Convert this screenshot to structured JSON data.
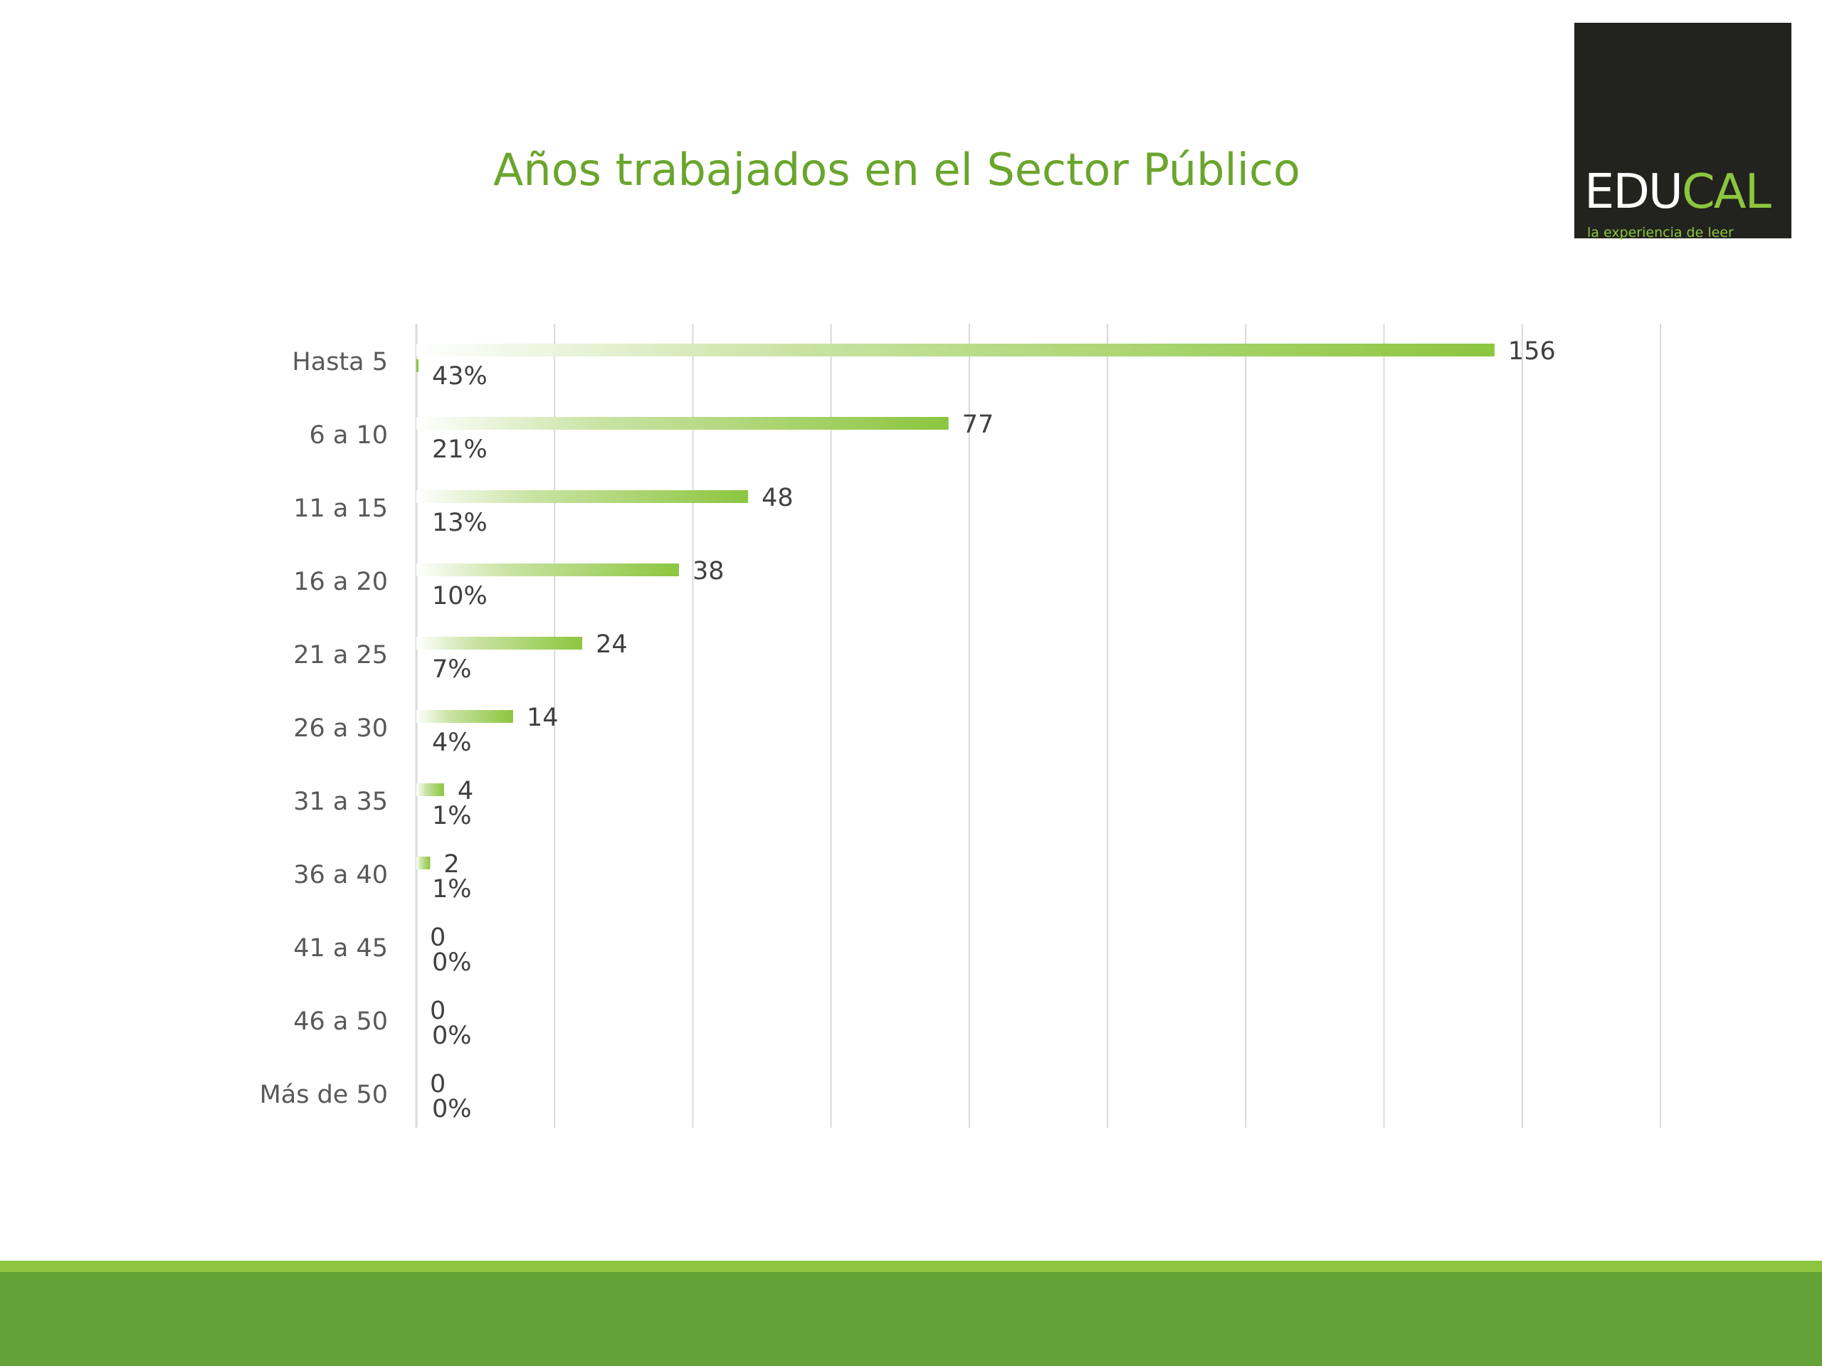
{
  "slide": {
    "title": "Años trabajados en el Sector Público"
  },
  "logo": {
    "word_white": "EDU",
    "word_green": "CAL",
    "tagline": "la experiencia de leer"
  },
  "colors": {
    "title": "#6aa52c",
    "bar": "#8cc63f",
    "bar_fade": "#ffffff",
    "gridline": "#d9d9d9",
    "label": "#595959",
    "value_label": "#404040",
    "logo_bg": "#22221e",
    "footer_band": "#62a236",
    "footer_stripe": "#8cc63f"
  },
  "chart_data": {
    "type": "bar",
    "orientation": "horizontal",
    "categories": [
      "Hasta 5",
      "6 a 10",
      "11 a 15",
      "16 a 20",
      "21 a 25",
      "26 a 30",
      "31 a 35",
      "36 a 40",
      "41 a 45",
      "46 a 50",
      "Más de 50"
    ],
    "series": [
      {
        "values": [
          156,
          77,
          48,
          38,
          24,
          14,
          4,
          2,
          0,
          0,
          0
        ],
        "value_labels": [
          "156",
          "77",
          "48",
          "38",
          "24",
          "14",
          "4",
          "2",
          "0",
          "0",
          "0"
        ]
      },
      {
        "values": [
          43,
          21,
          13,
          10,
          7,
          4,
          1,
          1,
          0,
          0,
          0
        ],
        "value_labels": [
          "43%",
          "21%",
          "13%",
          "10%",
          "7%",
          "4%",
          "1%",
          "1%",
          "0%",
          "0%",
          "0%"
        ]
      }
    ],
    "xlim": [
      0,
      180
    ],
    "grid": true,
    "gridline_step": 20,
    "legend": "none",
    "title": "",
    "xlabel": "",
    "ylabel": ""
  }
}
